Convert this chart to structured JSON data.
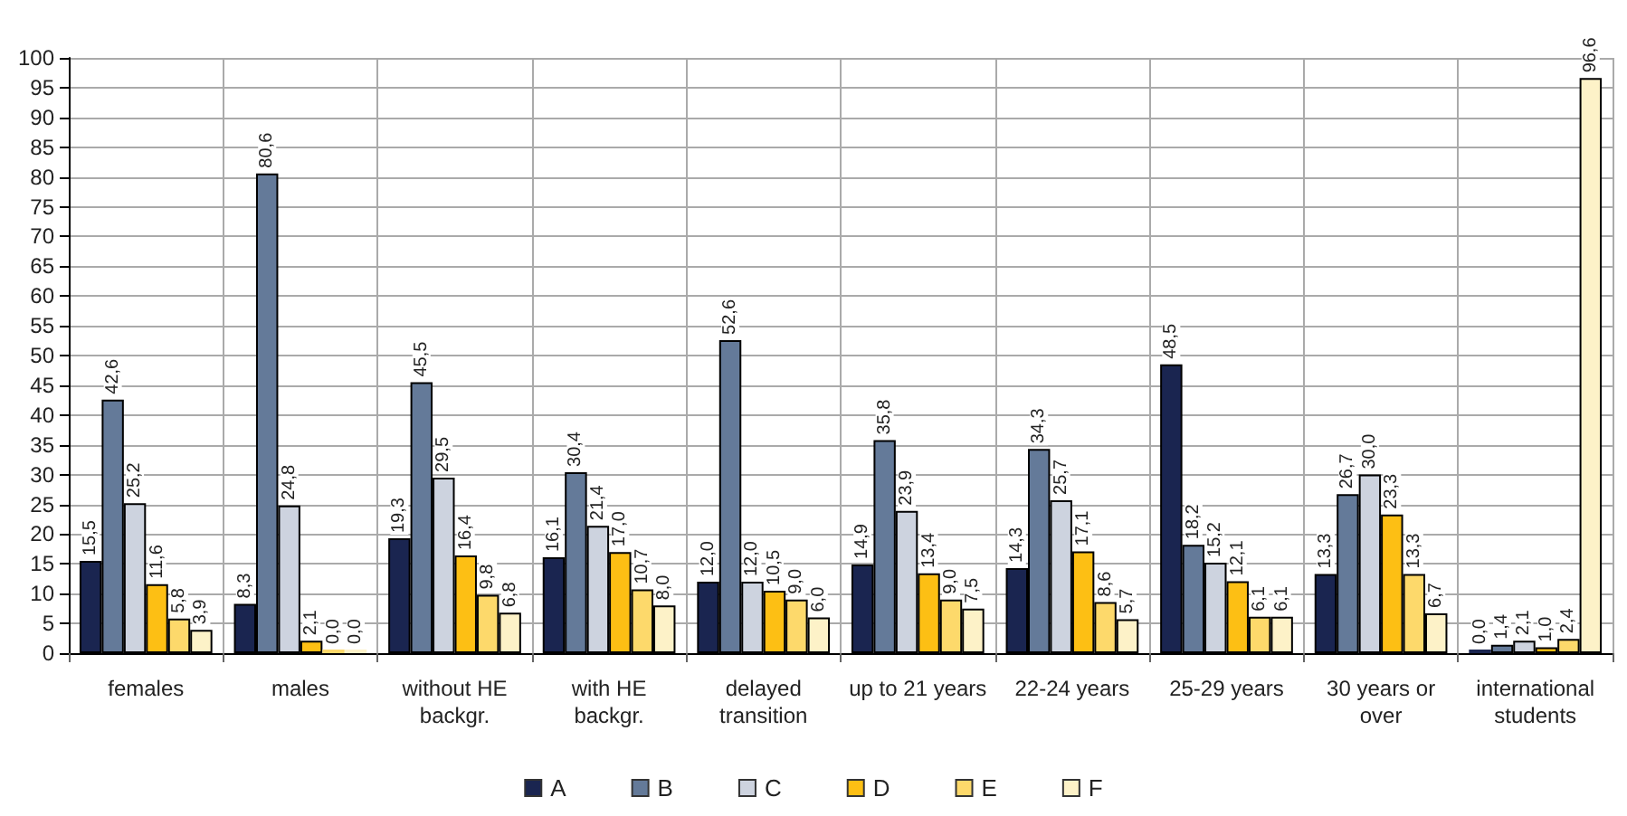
{
  "chart_data": {
    "type": "bar",
    "categories": [
      "females",
      "males",
      "without HE\nbackgr.",
      "with HE\nbackgr.",
      "delayed\ntransition",
      "up to 21 years",
      "22-24 years",
      "25-29 years",
      "30 years or\nover",
      "international\nstudents"
    ],
    "series": [
      {
        "name": "A",
        "color": "#1a2550",
        "values": [
          15.5,
          8.3,
          19.3,
          16.1,
          12.0,
          14.9,
          14.3,
          48.5,
          13.3,
          0.0
        ],
        "value_labels": [
          "15,5",
          "8,3",
          "19,3",
          "16,1",
          "12,0",
          "14,9",
          "14,3",
          "48,5",
          "13,3",
          "0,0"
        ]
      },
      {
        "name": "B",
        "color": "#647a99",
        "values": [
          42.6,
          80.6,
          45.5,
          30.4,
          52.6,
          35.8,
          34.3,
          18.2,
          26.7,
          1.4
        ],
        "value_labels": [
          "42,6",
          "80,6",
          "45,5",
          "30,4",
          "52,6",
          "35,8",
          "34,3",
          "18,2",
          "26,7",
          "1,4"
        ]
      },
      {
        "name": "C",
        "color": "#cdd3df",
        "values": [
          25.2,
          24.8,
          29.5,
          21.4,
          12.0,
          23.9,
          25.7,
          15.2,
          30.0,
          2.1
        ],
        "value_labels": [
          "25,2",
          "24,8",
          "29,5",
          "21,4",
          "12,0",
          "23,9",
          "25,7",
          "15,2",
          "30,0",
          "2,1"
        ]
      },
      {
        "name": "D",
        "color": "#fdbf14",
        "values": [
          11.6,
          2.1,
          16.4,
          17.0,
          10.5,
          13.4,
          17.1,
          12.1,
          23.3,
          1.0
        ],
        "value_labels": [
          "11,6",
          "2,1",
          "16,4",
          "17,0",
          "10,5",
          "13,4",
          "17,1",
          "12,1",
          "23,3",
          "1,0"
        ]
      },
      {
        "name": "E",
        "color": "#fdd96b",
        "values": [
          5.8,
          0.0,
          9.8,
          10.7,
          9.0,
          9.0,
          8.6,
          6.1,
          13.3,
          2.4
        ],
        "value_labels": [
          "5,8",
          "0,0",
          "9,8",
          "10,7",
          "9,0",
          "9,0",
          "8,6",
          "6,1",
          "13,3",
          "2,4"
        ]
      },
      {
        "name": "F",
        "color": "#fdf2c8",
        "values": [
          3.9,
          0.0,
          6.8,
          8.0,
          6.0,
          7.5,
          5.7,
          6.1,
          6.7,
          96.6
        ],
        "value_labels": [
          "3,9",
          "0,0",
          "6,8",
          "8,0",
          "6,0",
          "7,5",
          "5,7",
          "6,1",
          "6,7",
          "96,6"
        ]
      }
    ],
    "ylim": [
      0,
      100
    ],
    "yticks": [
      0,
      5,
      10,
      15,
      20,
      25,
      30,
      35,
      40,
      45,
      50,
      55,
      60,
      65,
      70,
      75,
      80,
      85,
      90,
      95,
      100
    ],
    "grid": true,
    "legend": "bottom"
  }
}
